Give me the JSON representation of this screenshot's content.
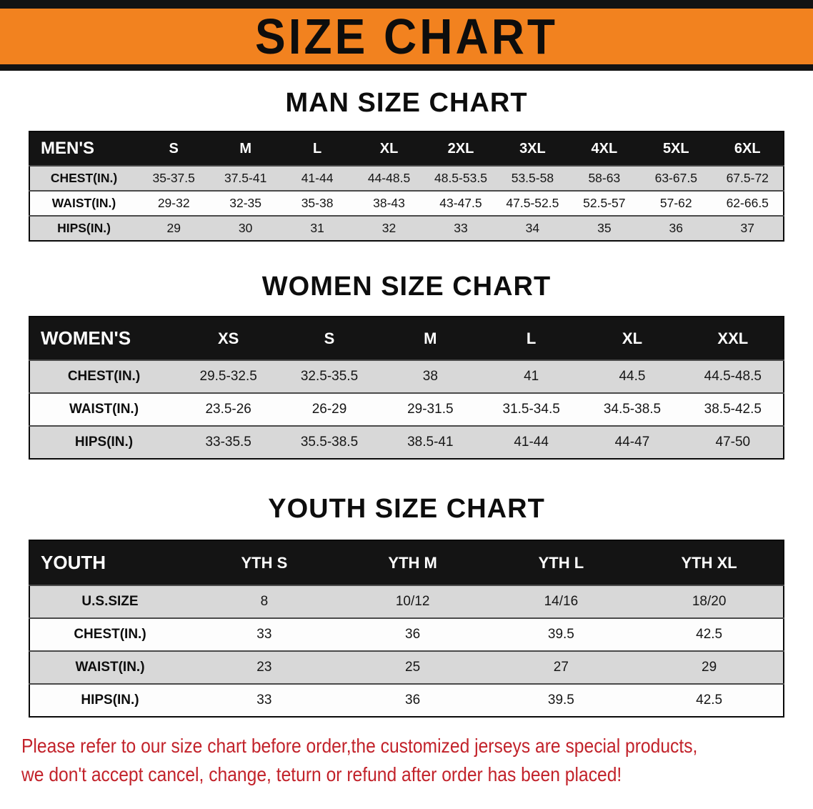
{
  "banner": {
    "title": "SIZE CHART"
  },
  "sections": [
    {
      "heading": "MAN SIZE CHART",
      "table": {
        "header": [
          "MEN'S",
          "S",
          "M",
          "L",
          "XL",
          "2XL",
          "3XL",
          "4XL",
          "5XL",
          "6XL"
        ],
        "rows": [
          [
            "CHEST(IN.)",
            "35-37.5",
            "37.5-41",
            "41-44",
            "44-48.5",
            "48.5-53.5",
            "53.5-58",
            "58-63",
            "63-67.5",
            "67.5-72"
          ],
          [
            "WAIST(IN.)",
            "29-32",
            "32-35",
            "35-38",
            "38-43",
            "43-47.5",
            "47.5-52.5",
            "52.5-57",
            "57-62",
            "62-66.5"
          ],
          [
            "HIPS(IN.)",
            "29",
            "30",
            "31",
            "32",
            "33",
            "34",
            "35",
            "36",
            "37"
          ]
        ]
      }
    },
    {
      "heading": "WOMEN SIZE CHART",
      "table": {
        "header": [
          "WOMEN'S",
          "XS",
          "S",
          "M",
          "L",
          "XL",
          "XXL"
        ],
        "rows": [
          [
            "CHEST(IN.)",
            "29.5-32.5",
            "32.5-35.5",
            "38",
            "41",
            "44.5",
            "44.5-48.5"
          ],
          [
            "WAIST(IN.)",
            "23.5-26",
            "26-29",
            "29-31.5",
            "31.5-34.5",
            "34.5-38.5",
            "38.5-42.5"
          ],
          [
            "HIPS(IN.)",
            "33-35.5",
            "35.5-38.5",
            "38.5-41",
            "41-44",
            "44-47",
            "47-50"
          ]
        ]
      }
    },
    {
      "heading": "YOUTH SIZE CHART",
      "table": {
        "header": [
          "YOUTH",
          "YTH S",
          "YTH M",
          "YTH L",
          "YTH XL"
        ],
        "rows": [
          [
            "U.S.SIZE",
            "8",
            "10/12",
            "14/16",
            "18/20"
          ],
          [
            "CHEST(IN.)",
            "33",
            "36",
            "39.5",
            "42.5"
          ],
          [
            "WAIST(IN.)",
            "23",
            "25",
            "27",
            "29"
          ],
          [
            "HIPS(IN.)",
            "33",
            "36",
            "39.5",
            "42.5"
          ]
        ]
      }
    }
  ],
  "disclaimer": {
    "line1": "Please refer to our size chart before order,the customized jerseys are special products,",
    "line2": "we don't accept cancel, change, teturn or refund after order has been placed!"
  },
  "colors": {
    "banner_orange": "#f2821f",
    "header_black": "#141414",
    "row_gray": "#d8d8d8",
    "disclaimer_red": "#c2222a"
  }
}
